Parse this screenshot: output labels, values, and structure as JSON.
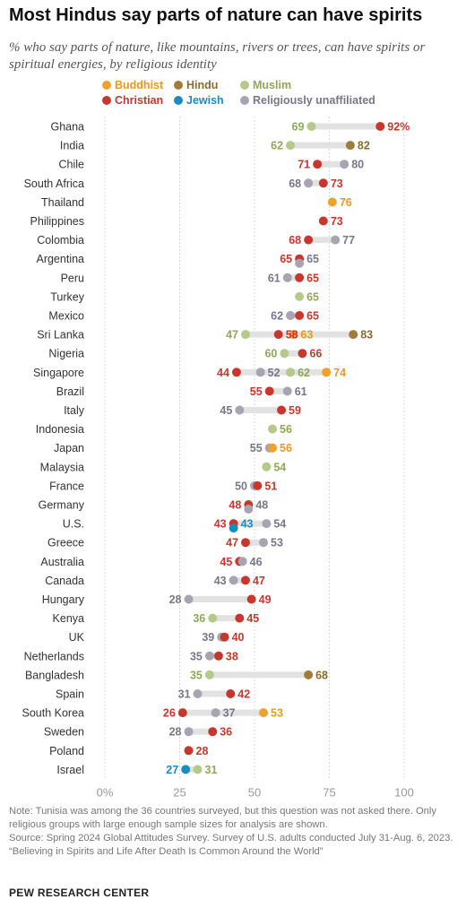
{
  "title": "Most Hindus say parts of nature can have spirits",
  "subtitle": "% who say parts of nature, like mountains, rivers or trees, can have spirits or spiritual energies, by religious identity",
  "colors": {
    "Buddhist": "#f0a02c",
    "Hindu": "#a07c3a",
    "Muslim": "#b4c98a",
    "Christian": "#c8372d",
    "Jewish": "#1a8cc0",
    "Religiously unaffiliated": "#a8a4b2",
    "gridline": "#d8d8d8",
    "range_bar": "#e2e2e2",
    "axis_text": "#999999"
  },
  "label_colors": {
    "Buddhist": "#e89a1e",
    "Hindu": "#8a6a30",
    "Muslim": "#8fa858",
    "Christian": "#c8372d",
    "Jewish": "#1a8cc0",
    "Religiously unaffiliated": "#7a7688"
  },
  "chart_data": {
    "type": "scatter",
    "title": "Most Hindus say parts of nature can have spirits",
    "subtitle": "% who say parts of nature, like mountains, rivers or trees, can have spirits or spiritual energies, by religious identity",
    "xlim": [
      0,
      100
    ],
    "x_ticks": [
      "0%",
      "25",
      "50",
      "75",
      "100"
    ],
    "grid": true,
    "legend_position": "top-left",
    "series_order": [
      "Buddhist",
      "Hindu",
      "Muslim",
      "Christian",
      "Jewish",
      "Religiously unaffiliated"
    ],
    "rows": [
      {
        "country": "Ghana",
        "values": {
          "Muslim": 69,
          "Christian": 92
        },
        "pct_on": "Christian"
      },
      {
        "country": "India",
        "values": {
          "Muslim": 62,
          "Hindu": 82
        }
      },
      {
        "country": "Chile",
        "values": {
          "Christian": 71,
          "Religiously unaffiliated": 80
        }
      },
      {
        "country": "South Africa",
        "values": {
          "Religiously unaffiliated": 68,
          "Christian": 73
        }
      },
      {
        "country": "Thailand",
        "values": {
          "Buddhist": 76
        }
      },
      {
        "country": "Philippines",
        "values": {
          "Christian": 73
        }
      },
      {
        "country": "Colombia",
        "values": {
          "Christian": 68,
          "Religiously unaffiliated": 77
        }
      },
      {
        "country": "Argentina",
        "values": {
          "Religiously unaffiliated": 65,
          "Christian": 65
        }
      },
      {
        "country": "Peru",
        "values": {
          "Religiously unaffiliated": 61,
          "Christian": 65
        }
      },
      {
        "country": "Turkey",
        "values": {
          "Muslim": 65
        }
      },
      {
        "country": "Mexico",
        "values": {
          "Religiously unaffiliated": 62,
          "Christian": 65
        }
      },
      {
        "country": "Sri Lanka",
        "values": {
          "Muslim": 47,
          "Christian": 58,
          "Buddhist": 63,
          "Hindu": 83
        }
      },
      {
        "country": "Nigeria",
        "values": {
          "Muslim": 60,
          "Christian": 66
        }
      },
      {
        "country": "Singapore",
        "values": {
          "Christian": 44,
          "Religiously unaffiliated": 52,
          "Muslim": 62,
          "Buddhist": 74
        }
      },
      {
        "country": "Brazil",
        "values": {
          "Christian": 55,
          "Religiously unaffiliated": 61
        }
      },
      {
        "country": "Italy",
        "values": {
          "Religiously unaffiliated": 45,
          "Christian": 59
        }
      },
      {
        "country": "Indonesia",
        "values": {
          "Muslim": 56
        }
      },
      {
        "country": "Japan",
        "values": {
          "Religiously unaffiliated": 55,
          "Buddhist": 56
        }
      },
      {
        "country": "Malaysia",
        "values": {
          "Muslim": 54
        }
      },
      {
        "country": "France",
        "values": {
          "Religiously unaffiliated": 50,
          "Christian": 51
        }
      },
      {
        "country": "Germany",
        "values": {
          "Religiously unaffiliated": 48,
          "Christian": 48
        }
      },
      {
        "country": "U.S.",
        "values": {
          "Jewish": 43,
          "Christian": 43,
          "Religiously unaffiliated": 54
        }
      },
      {
        "country": "Greece",
        "values": {
          "Christian": 47,
          "Religiously unaffiliated": 53
        }
      },
      {
        "country": "Australia",
        "values": {
          "Christian": 45,
          "Religiously unaffiliated": 46
        }
      },
      {
        "country": "Canada",
        "values": {
          "Religiously unaffiliated": 43,
          "Christian": 47
        }
      },
      {
        "country": "Hungary",
        "values": {
          "Religiously unaffiliated": 28,
          "Christian": 49
        }
      },
      {
        "country": "Kenya",
        "values": {
          "Muslim": 36,
          "Christian": 45
        }
      },
      {
        "country": "UK",
        "values": {
          "Religiously unaffiliated": 39,
          "Christian": 40
        }
      },
      {
        "country": "Netherlands",
        "values": {
          "Religiously unaffiliated": 35,
          "Christian": 38
        }
      },
      {
        "country": "Bangladesh",
        "values": {
          "Muslim": 35,
          "Hindu": 68
        }
      },
      {
        "country": "Spain",
        "values": {
          "Religiously unaffiliated": 31,
          "Christian": 42
        }
      },
      {
        "country": "South Korea",
        "values": {
          "Christian": 26,
          "Religiously unaffiliated": 37,
          "Buddhist": 53
        }
      },
      {
        "country": "Sweden",
        "values": {
          "Religiously unaffiliated": 28,
          "Christian": 36
        }
      },
      {
        "country": "Poland",
        "values": {
          "Christian": 28
        }
      },
      {
        "country": "Israel",
        "values": {
          "Jewish": 27,
          "Muslim": 31
        }
      }
    ]
  },
  "legend": [
    {
      "key": "Buddhist",
      "label": "Buddhist"
    },
    {
      "key": "Hindu",
      "label": "Hindu"
    },
    {
      "key": "Muslim",
      "label": "Muslim"
    },
    {
      "key": "Christian",
      "label": "Christian"
    },
    {
      "key": "Jewish",
      "label": "Jewish"
    },
    {
      "key": "Religiously unaffiliated",
      "label": "Religiously unaffiliated"
    }
  ],
  "notes": {
    "note": "Note: Tunisia was among the 36 countries surveyed, but this question was not asked there. Only religious groups with large enough sample sizes for analysis are shown.",
    "source": "Source: Spring 2024 Global Attitudes Survey. Survey of U.S. adults conducted July 31-Aug. 6, 2023.",
    "report": "“Believing in Spirits and Life After Death Is Common Around the World”"
  },
  "brand": "PEW RESEARCH CENTER"
}
